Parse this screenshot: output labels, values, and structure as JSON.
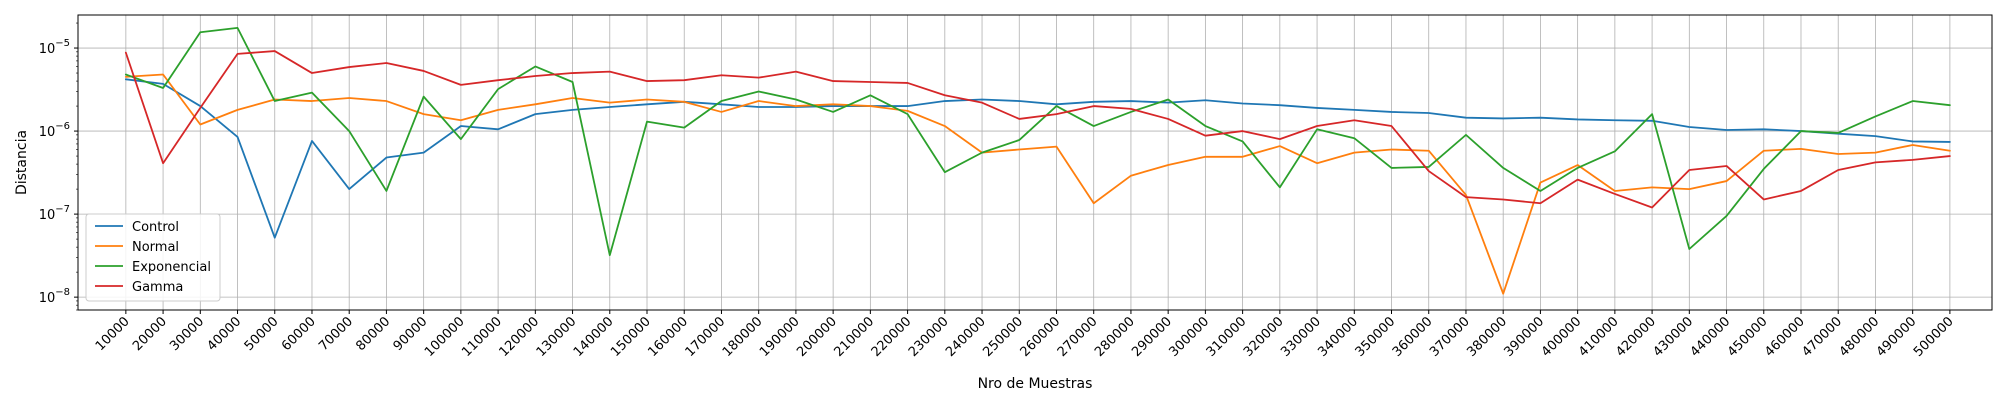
{
  "chart_data": {
    "type": "line",
    "title": "",
    "xlabel": "Nro de Muestras",
    "ylabel": "Distancia",
    "yscale": "log",
    "ylim": [
      7e-09,
      2.5e-05
    ],
    "y_ticks": [
      1e-08,
      1e-07,
      1e-06,
      1e-05
    ],
    "y_tick_labels": [
      {
        "base": "10",
        "exp": "−8"
      },
      {
        "base": "10",
        "exp": "−7"
      },
      {
        "base": "10",
        "exp": "−6"
      },
      {
        "base": "10",
        "exp": "−5"
      }
    ],
    "grid": true,
    "legend_position": "lower-left",
    "x": [
      10000,
      20000,
      30000,
      40000,
      50000,
      60000,
      70000,
      80000,
      90000,
      100000,
      110000,
      120000,
      130000,
      140000,
      150000,
      160000,
      170000,
      180000,
      190000,
      200000,
      210000,
      220000,
      230000,
      240000,
      250000,
      260000,
      270000,
      280000,
      290000,
      300000,
      310000,
      320000,
      330000,
      340000,
      350000,
      360000,
      370000,
      380000,
      390000,
      400000,
      410000,
      420000,
      430000,
      440000,
      450000,
      460000,
      470000,
      480000,
      490000,
      500000
    ],
    "x_tick_labels": [
      "10000",
      "20000",
      "30000",
      "40000",
      "50000",
      "60000",
      "70000",
      "80000",
      "90000",
      "100000",
      "110000",
      "120000",
      "130000",
      "140000",
      "150000",
      "160000",
      "170000",
      "180000",
      "190000",
      "200000",
      "210000",
      "220000",
      "230000",
      "240000",
      "250000",
      "260000",
      "270000",
      "280000",
      "290000",
      "300000",
      "310000",
      "320000",
      "330000",
      "340000",
      "350000",
      "360000",
      "370000",
      "380000",
      "390000",
      "400000",
      "410000",
      "420000",
      "430000",
      "440000",
      "450000",
      "460000",
      "470000",
      "480000",
      "490000",
      "500000"
    ],
    "series": [
      {
        "name": "Control",
        "color": "#1f77b4",
        "values": [
          4.2e-06,
          3.7e-06,
          2e-06,
          8.5e-07,
          5.2e-08,
          7.6e-07,
          2e-07,
          4.8e-07,
          5.5e-07,
          1.15e-06,
          1.05e-06,
          1.6e-06,
          1.8e-06,
          1.95e-06,
          2.1e-06,
          2.25e-06,
          2.1e-06,
          1.95e-06,
          1.95e-06,
          2e-06,
          2e-06,
          2e-06,
          2.3e-06,
          2.4e-06,
          2.3e-06,
          2.1e-06,
          2.25e-06,
          2.3e-06,
          2.2e-06,
          2.35e-06,
          2.15e-06,
          2.05e-06,
          1.9e-06,
          1.8e-06,
          1.7e-06,
          1.65e-06,
          1.45e-06,
          1.42e-06,
          1.45e-06,
          1.38e-06,
          1.35e-06,
          1.33e-06,
          1.12e-06,
          1.03e-06,
          1.05e-06,
          1e-06,
          9.3e-07,
          8.7e-07,
          7.5e-07,
          7.4e-07
        ]
      },
      {
        "name": "Normal",
        "color": "#ff7f0e",
        "values": [
          4.5e-06,
          4.8e-06,
          1.2e-06,
          1.8e-06,
          2.4e-06,
          2.3e-06,
          2.5e-06,
          2.3e-06,
          1.6e-06,
          1.35e-06,
          1.8e-06,
          2.1e-06,
          2.5e-06,
          2.2e-06,
          2.4e-06,
          2.25e-06,
          1.7e-06,
          2.3e-06,
          2e-06,
          2.1e-06,
          2e-06,
          1.75e-06,
          1.15e-06,
          5.5e-07,
          6e-07,
          6.5e-07,
          1.35e-07,
          2.9e-07,
          3.9e-07,
          4.9e-07,
          4.9e-07,
          6.6e-07,
          4.1e-07,
          5.5e-07,
          6e-07,
          5.8e-07,
          1.7e-07,
          1.1e-08,
          2.4e-07,
          3.9e-07,
          1.9e-07,
          2.1e-07,
          2e-07,
          2.5e-07,
          5.8e-07,
          6.1e-07,
          5.3e-07,
          5.5e-07,
          6.8e-07,
          5.8e-07
        ]
      },
      {
        "name": "Exponencial",
        "color": "#2ca02c",
        "values": [
          4.8e-06,
          3.3e-06,
          1.55e-05,
          1.75e-05,
          2.3e-06,
          2.9e-06,
          1e-06,
          1.9e-07,
          2.6e-06,
          8e-07,
          3.2e-06,
          6e-06,
          3.9e-06,
          3.2e-08,
          1.3e-06,
          1.1e-06,
          2.3e-06,
          3e-06,
          2.4e-06,
          1.7e-06,
          2.7e-06,
          1.6e-06,
          3.2e-07,
          5.5e-07,
          7.8e-07,
          2e-06,
          1.15e-06,
          1.7e-06,
          2.4e-06,
          1.15e-06,
          7.5e-07,
          2.1e-07,
          1.05e-06,
          8.2e-07,
          3.6e-07,
          3.7e-07,
          9e-07,
          3.6e-07,
          1.9e-07,
          3.6e-07,
          5.7e-07,
          1.6e-06,
          3.8e-08,
          9.5e-08,
          3.5e-07,
          1e-06,
          9.5e-07,
          1.5e-06,
          2.3e-06,
          2.05e-06
        ]
      },
      {
        "name": "Gamma",
        "color": "#d62728",
        "values": [
          8.8e-06,
          4.1e-07,
          1.9e-06,
          8.5e-06,
          9.2e-06,
          5e-06,
          5.9e-06,
          6.6e-06,
          5.3e-06,
          3.6e-06,
          4.1e-06,
          4.6e-06,
          5e-06,
          5.2e-06,
          4e-06,
          4.1e-06,
          4.7e-06,
          4.4e-06,
          5.2e-06,
          4e-06,
          3.9e-06,
          3.8e-06,
          2.7e-06,
          2.2e-06,
          1.4e-06,
          1.6e-06,
          2e-06,
          1.85e-06,
          1.4e-06,
          8.8e-07,
          1e-06,
          8e-07,
          1.15e-06,
          1.35e-06,
          1.15e-06,
          3.3e-07,
          1.6e-07,
          1.5e-07,
          1.35e-07,
          2.6e-07,
          1.75e-07,
          1.2e-07,
          3.4e-07,
          3.8e-07,
          1.5e-07,
          1.9e-07,
          3.4e-07,
          4.2e-07,
          4.5e-07,
          5e-07
        ]
      }
    ]
  }
}
